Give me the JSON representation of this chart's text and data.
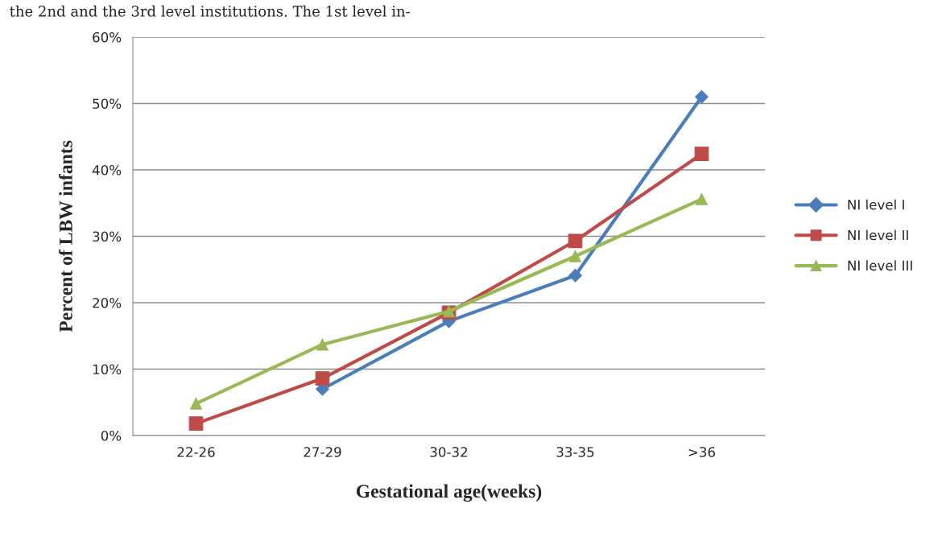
{
  "chart_data": {
    "type": "line",
    "xlabel": "Gestational age(weeks)",
    "ylabel": "Percent of LBW infants",
    "annotations": [
      "the 2nd and the 3rd level institutions. The 1st level in-"
    ],
    "categories": [
      "22-26",
      "27-29",
      "30-32",
      "33-35",
      ">36"
    ],
    "series": [
      {
        "name": "NI level I",
        "color": "#4a7ebb",
        "marker": "diamond",
        "values": [
          null,
          7.0,
          17.2,
          24.1,
          51.0
        ]
      },
      {
        "name": "NI level II",
        "color": "#be4b48",
        "marker": "square",
        "values": [
          1.8,
          8.6,
          18.5,
          29.3,
          42.4
        ]
      },
      {
        "name": "NI level III",
        "color": "#98b954",
        "marker": "triangle",
        "values": [
          4.8,
          13.7,
          18.7,
          27.0,
          35.6
        ]
      }
    ],
    "ylim": [
      0,
      60
    ],
    "yticks": [
      {
        "value": 0,
        "label": "0%"
      },
      {
        "value": 10,
        "label": "10%"
      },
      {
        "value": 20,
        "label": "20%"
      },
      {
        "value": 30,
        "label": "30%"
      },
      {
        "value": 40,
        "label": "40%"
      },
      {
        "value": 50,
        "label": "50%"
      },
      {
        "value": 60,
        "label": "60%"
      }
    ],
    "grid": "y",
    "legend": "right",
    "line_style": "solid"
  }
}
